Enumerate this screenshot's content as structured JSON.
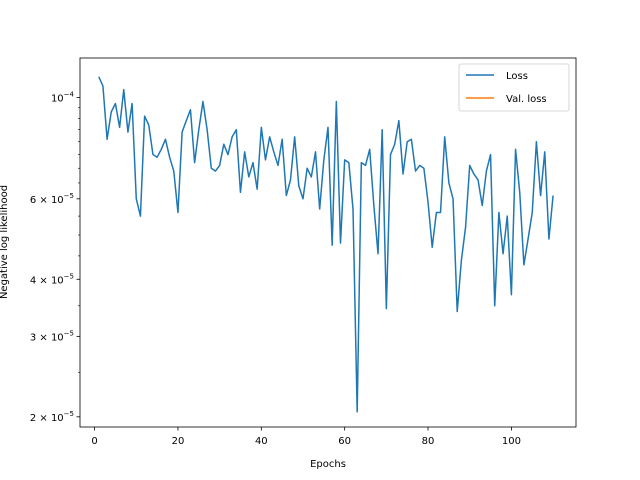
{
  "chart_data": {
    "type": "line",
    "title": "",
    "xlabel": "Epochs",
    "ylabel": "Negative log likelihood",
    "yscale": "log",
    "xlim": [
      -3.5,
      115.5
    ],
    "ylim": [
      1.9e-05,
      0.000122
    ],
    "xticks": [
      0,
      20,
      40,
      60,
      80,
      100
    ],
    "xtick_labels": [
      "0",
      "20",
      "40",
      "60",
      "80",
      "100"
    ],
    "yticks": [
      0.0001,
      6e-05,
      4e-05,
      3e-05,
      2e-05
    ],
    "ytick_labels": [
      {
        "base": "10",
        "exp": "−4"
      },
      {
        "base": "6 × 10",
        "exp": "−5"
      },
      {
        "base": "4 × 10",
        "exp": "−5"
      },
      {
        "base": "3 × 10",
        "exp": "−5"
      },
      {
        "base": "2 × 10",
        "exp": "−5"
      }
    ],
    "minor_yticks": [
      2.5e-05,
      3.5e-05,
      4.5e-05,
      5e-05,
      5.5e-05,
      6.5e-05,
      7e-05,
      7.5e-05,
      8e-05,
      8.5e-05,
      9e-05,
      9.5e-05
    ],
    "grid": false,
    "legend_position": "top-right",
    "series": [
      {
        "name": "Loss",
        "color": "#1f77b4",
        "x": [
          1,
          2,
          3,
          4,
          5,
          6,
          7,
          8,
          9,
          10,
          11,
          12,
          13,
          14,
          15,
          16,
          17,
          18,
          19,
          20,
          21,
          22,
          23,
          24,
          25,
          26,
          27,
          28,
          29,
          30,
          31,
          32,
          33,
          34,
          35,
          36,
          37,
          38,
          39,
          40,
          41,
          42,
          43,
          44,
          45,
          46,
          47,
          48,
          49,
          50,
          51,
          52,
          53,
          54,
          55,
          56,
          57,
          58,
          59,
          60,
          61,
          62,
          63,
          64,
          65,
          66,
          67,
          68,
          69,
          70,
          71,
          72,
          73,
          74,
          75,
          76,
          77,
          78,
          79,
          80,
          81,
          82,
          83,
          84,
          85,
          86,
          87,
          88,
          89,
          90,
          91,
          92,
          93,
          94,
          95,
          96,
          97,
          98,
          99,
          100,
          101,
          102,
          103,
          104,
          105,
          106,
          107,
          108,
          109,
          110
        ],
        "y": [
          0.000111,
          0.000106,
          8.1e-05,
          9.3e-05,
          9.7e-05,
          8.6e-05,
          0.000104,
          8.4e-05,
          9.7e-05,
          6e-05,
          5.5e-05,
          9.1e-05,
          8.7e-05,
          7.5e-05,
          7.4e-05,
          7.7e-05,
          8.1e-05,
          7.4e-05,
          6.9e-05,
          5.6e-05,
          8.4e-05,
          8.9e-05,
          9.4e-05,
          7.2e-05,
          8.5e-05,
          9.8e-05,
          8.5e-05,
          7e-05,
          6.9e-05,
          7.1e-05,
          7.9e-05,
          7.5e-05,
          8.2e-05,
          8.5e-05,
          6.2e-05,
          7.6e-05,
          6.7e-05,
          7.2e-05,
          6.3e-05,
          8.6e-05,
          7.3e-05,
          8.2e-05,
          7.6e-05,
          7.1e-05,
          8.1e-05,
          6.1e-05,
          6.6e-05,
          8.2e-05,
          6.4e-05,
          6e-05,
          7e-05,
          6.7e-05,
          7.6e-05,
          5.7e-05,
          7.3e-05,
          8.6e-05,
          4.75e-05,
          9.8e-05,
          4.8e-05,
          7.3e-05,
          7.2e-05,
          5.7e-05,
          2.05e-05,
          7.2e-05,
          7.1e-05,
          7.7e-05,
          5.8e-05,
          4.55e-05,
          8.5e-05,
          3.45e-05,
          7.5e-05,
          7.9e-05,
          8.9e-05,
          6.8e-05,
          8e-05,
          8.1e-05,
          6.9e-05,
          7.1e-05,
          7e-05,
          5.9e-05,
          4.7e-05,
          5.6e-05,
          5.6e-05,
          8.2e-05,
          6.5e-05,
          6e-05,
          3.4e-05,
          4.4e-05,
          5.2e-05,
          7.1e-05,
          6.8e-05,
          6.6e-05,
          5.8e-05,
          6.9e-05,
          7.5e-05,
          3.5e-05,
          5.6e-05,
          4.55e-05,
          5.5e-05,
          3.7e-05,
          7.7e-05,
          6.2e-05,
          4.3e-05,
          4.9e-05,
          5.6e-05,
          8e-05,
          6.1e-05,
          7.6e-05,
          4.9e-05,
          6.1e-05
        ]
      },
      {
        "name": "Val. loss",
        "color": "#ff7f0e",
        "x": [],
        "y": []
      }
    ]
  }
}
